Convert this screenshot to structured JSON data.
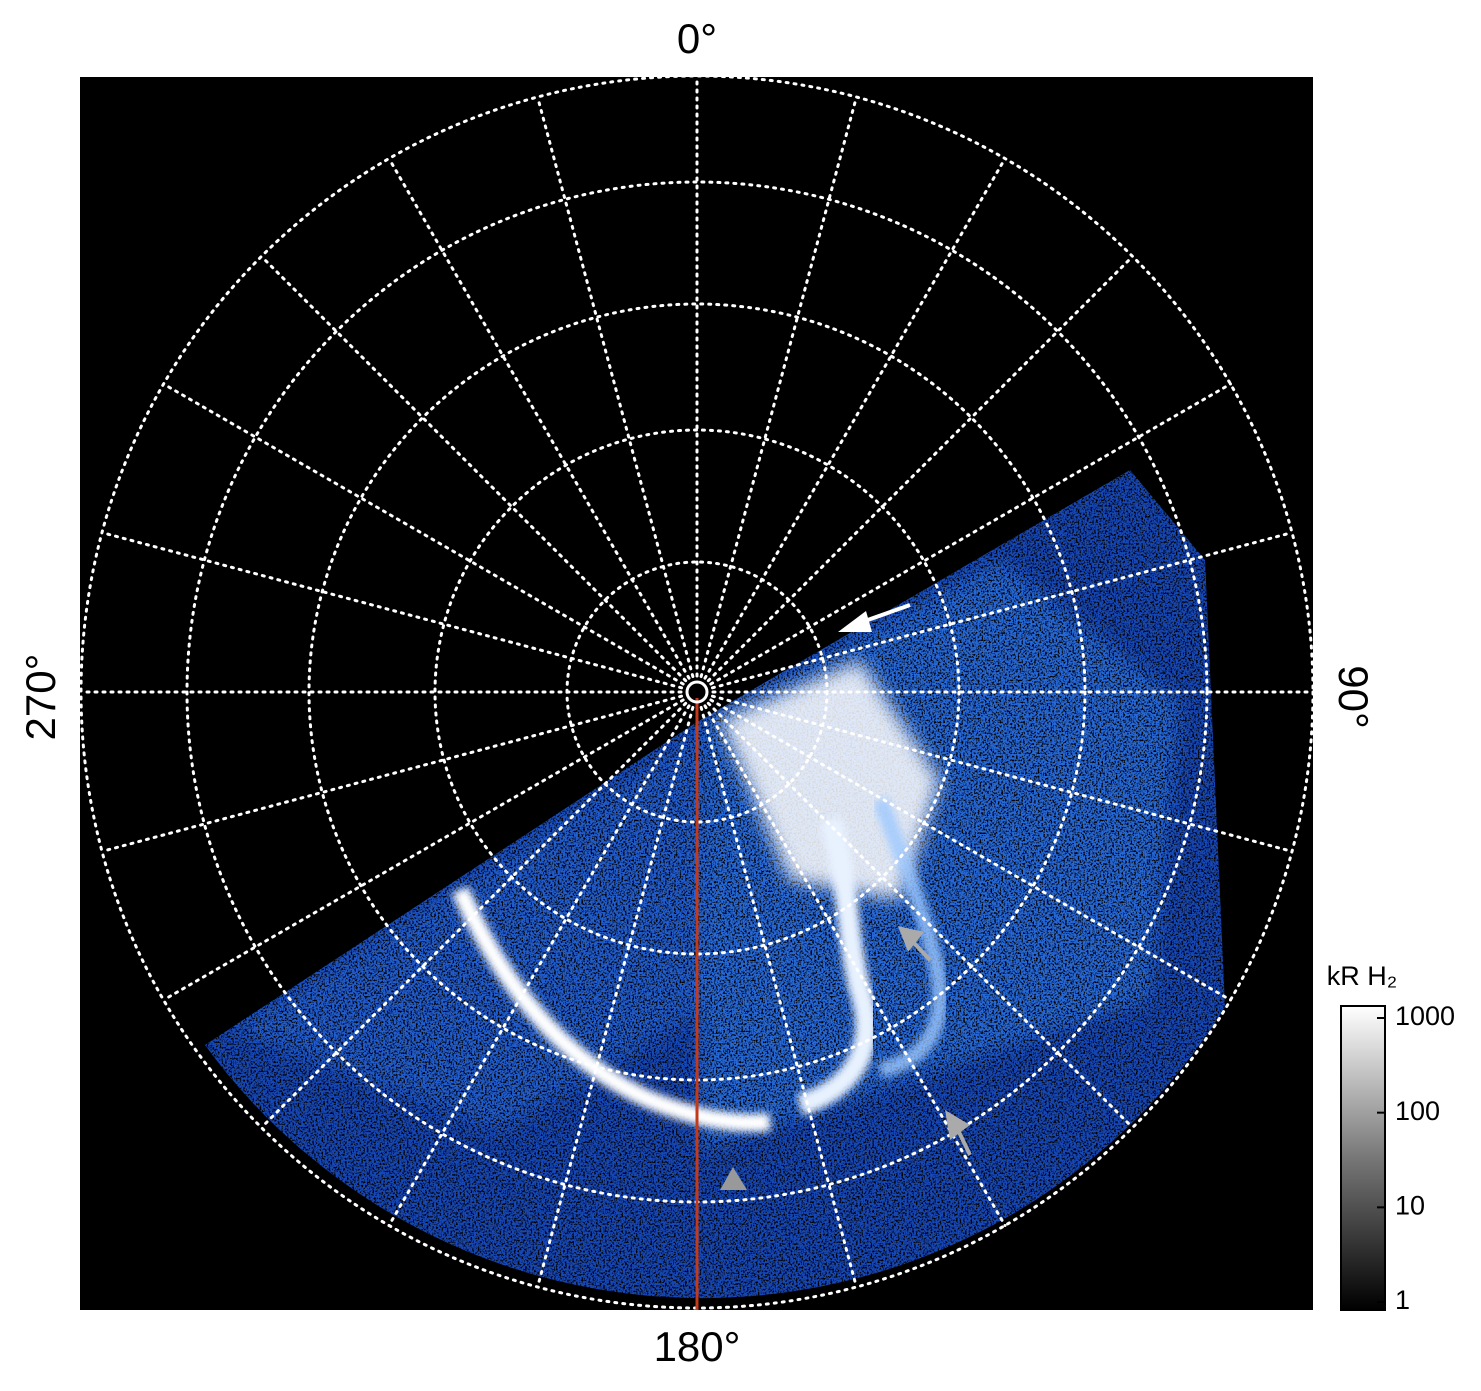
{
  "map": {
    "labels": {
      "top": "0°",
      "right": "90°",
      "bottom": "180°",
      "left": "270°"
    },
    "colorbar": {
      "title": "kR H₂",
      "scale": "log",
      "lim": [
        1,
        1000
      ],
      "ticks": [
        1,
        10,
        100,
        1000
      ]
    }
  }
}
